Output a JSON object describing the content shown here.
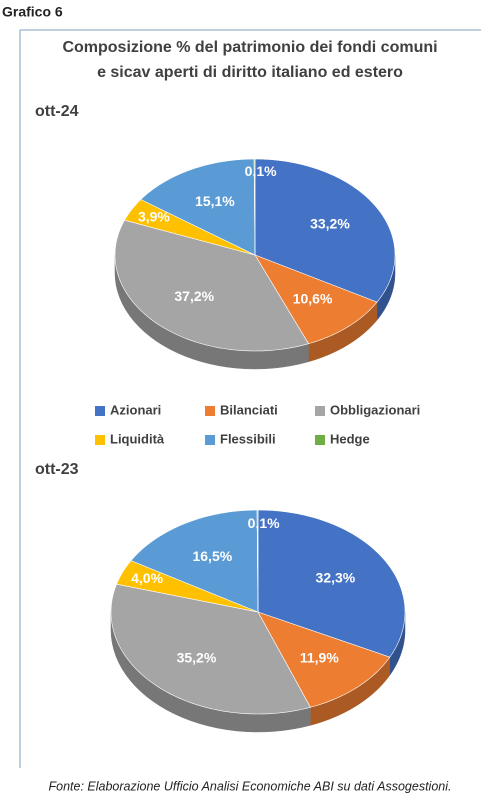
{
  "header": "Grafico 6",
  "title": [
    "Composizione % del patrimonio dei fondi comuni",
    "e sicav aperti di diritto italiano ed estero"
  ],
  "footer": "Fonte: Elaborazione Ufficio Analisi Economiche ABI su dati Assogestioni.",
  "chart_data": [
    {
      "type": "pie",
      "title": "ott-24",
      "categories": [
        "Azionari",
        "Bilanciati",
        "Obbligazionari",
        "Liquidità",
        "Flessibili",
        "Hedge"
      ],
      "colors": [
        "#4472c4",
        "#ed7d31",
        "#a5a5a5",
        "#ffc000",
        "#5b9bd5",
        "#70ad47"
      ],
      "values": [
        33.2,
        10.6,
        37.2,
        3.9,
        15.1,
        0.1
      ],
      "value_labels": [
        "33,2%",
        "10,6%",
        "37,2%",
        "3,9%",
        "15,1%",
        "0,1%"
      ]
    },
    {
      "type": "pie",
      "title": "ott-23",
      "values": [
        32.3,
        11.9,
        35.2,
        4.0,
        16.5,
        0.1
      ],
      "value_labels": [
        "32,3%",
        "11,9%",
        "35,2%",
        "4,0%",
        "16,5%",
        "0,1%"
      ]
    }
  ]
}
